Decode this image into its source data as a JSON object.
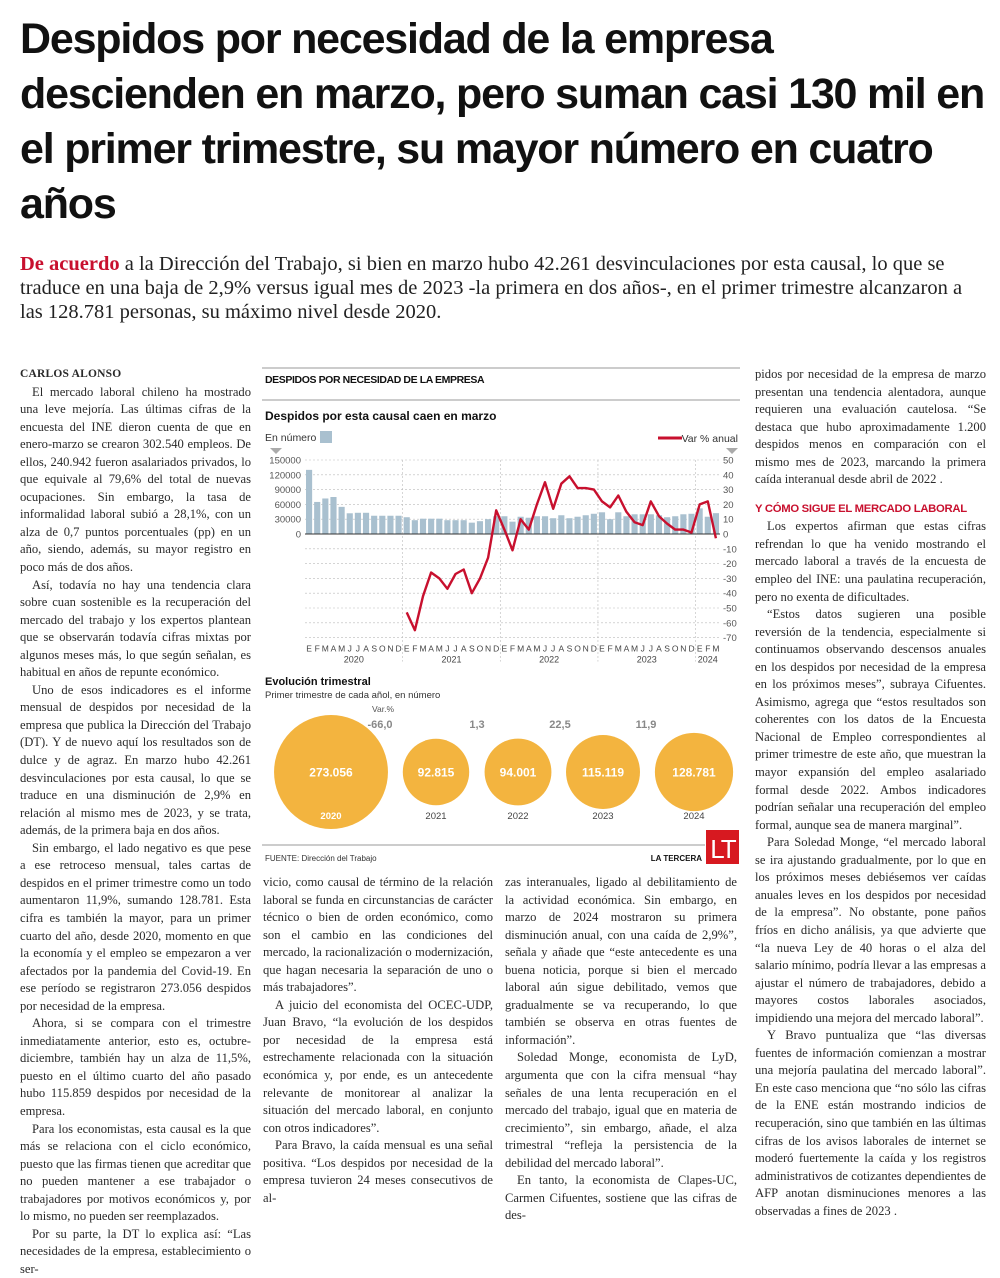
{
  "headline": "Despidos por necesidad de la empresa descienden en marzo, pero suman casi 130 mil en el primer trimestre, su mayor número en cuatro años",
  "lead": {
    "kicker": "De acuerdo",
    "text": " a la Dirección del Trabajo, si bien en marzo hubo 42.261 desvinculaciones por esta causal, lo que se traduce en una baja de 2,9% versus igual mes de 2023 -la primera en dos años-, en el primer trimestre alcanzaron a las 128.781 personas, su máximo nivel desde 2020."
  },
  "byline": "CARLOS ALONSO",
  "columns": {
    "col1": [
      "El mercado laboral chileno ha mostrado una leve mejoría. Las últimas cifras de la encuesta del INE dieron cuenta de que en enero-marzo se crearon 302.540 empleos. De ellos, 240.942 fueron asalariados privados, lo que equivale al 79,6% del total de nuevas ocupaciones. Sin embargo, la tasa de informalidad laboral subió a 28,1%, con un alza de 0,7 puntos porcentuales (pp) en un año, siendo, además, su mayor registro en poco más de dos años.",
      "Así, todavía no hay una tendencia clara sobre cuan sostenible es la recuperación del mercado del trabajo y los expertos plantean que se observarán todavía cifras mixtas por algunos meses más, lo que según señalan, es habitual en años de repunte económico.",
      "Uno de esos indicadores es el informe mensual de despidos por necesidad de la empresa que publica la Dirección del Trabajo (DT). Y de nuevo aquí los resultados son de dulce y de agraz. En marzo hubo 42.261 desvinculaciones por esta causal, lo que se traduce en una disminución de 2,9% en relación al mismo mes de 2023, y se trata, además, de la primera baja en dos años.",
      "Sin embargo, el lado negativo es que pese a ese retroceso mensual, tales cartas de despidos en el primer trimestre como un todo aumentaron 11,9%, sumando 128.781. Esta cifra es también la mayor, para un primer cuarto del año, desde 2020, momento en que la economía y el empleo se empezaron a ver afectados por la pandemia del Covid-19. En ese período se registraron 273.056 despidos por necesidad de la empresa.",
      "Ahora, si se compara con el trimestre inmediatamente anterior, esto es, octubre-diciembre, también hay un alza de 11,5%, puesto en el último cuarto del año pasado hubo 115.859 despidos por necesidad de la empresa.",
      "Para los economistas, esta causal es la que más se relaciona con el ciclo económico, puesto que las firmas tienen que acreditar que no pueden mantener a ese trabajador o trabajadores por motivos económicos y, por lo mismo, no pueden ser reemplazados.",
      "Por su parte, la DT lo explica así: “Las necesidades de la empresa, establecimiento o ser-"
    ],
    "col2": [
      "vicio, como causal de término de la relación laboral se funda en circunstancias de carácter técnico o bien de orden económico, como son el cambio en las condiciones del mercado, la racionalización o modernización, que hagan necesaria la separación de uno o más trabajadores”.",
      "A juicio del economista del OCEC-UDP, Juan Bravo, “la evolución de los despidos por necesidad de la empresa está estrechamente relacionada con la situación económica y, por ende, es un antecedente relevante de monitorear al analizar la situación del mercado laboral, en conjunto con otros indicadores”.",
      "Para Bravo, la caída mensual es una señal positiva. “Los despidos por necesidad de la empresa tuvieron 24 meses consecutivos de al-"
    ],
    "col3": [
      "zas interanuales, ligado al debilitamiento de la actividad económica. Sin embargo, en marzo de 2024 mostraron su primera disminución anual, con una caída de 2,9%”, señala y añade que “este antecedente es una buena noticia, porque si bien el mercado laboral aún sigue debilitado, vemos que gradualmente se va recuperando, lo que también se observa en otras fuentes de información”.",
      "Soledad Monge, economista de LyD, argumenta que con la cifra mensual “hay señales de una lenta recuperación en el mercado del trabajo, igual que en materia de crecimiento”, sin embargo, añade, el alza trimestral “refleja la persistencia de la debilidad del mercado laboral”.",
      "En tanto, la economista de Clapes-UC, Carmen Cifuentes, sostiene que las cifras de des-"
    ],
    "col4a": [
      "pidos por necesidad de la empresa de marzo presentan una tendencia alentadora, aunque requieren una evaluación cautelosa. “Se destaca que hubo aproximadamente 1.200 despidos menos en comparación con el mismo mes de 2023, marcando la primera caída interanual desde abril de 2022 ."
    ],
    "subhead": "Y CÓMO SIGUE EL MERCADO LABORAL",
    "col4b": [
      "Los expertos afirman que estas cifras refrendan lo que ha venido mostrando el mercado laboral a través de la encuesta de empleo del INE: una paulatina recuperación, pero no exenta de dificultades.",
      "“Estos datos sugieren una posible reversión de la tendencia, especialmente si continuamos observando descensos anuales en los despidos por necesidad de la empresa en los próximos meses”, subraya Cifuentes. Asimismo, agrega que “estos resultados son coherentes con los datos de la Encuesta Nacional de Empleo correspondientes al primer trimestre de este año, que muestran la mayor expansión del empleo asalariado formal desde 2022. Ambos indicadores podrían señalar una recuperación del empleo formal, aunque sea de manera marginal”.",
      "Para Soledad Monge, “el mercado laboral se ira ajustando gradualmente, por lo que en los próximos meses debiésemos ver caídas anuales leves en los despidos por necesidad de la empresa”. No obstante, pone paños fríos en dicho análisis, ya que advierte que “la nueva Ley de 40 horas o el alza del salario mínimo, podría llevar a las empresas a ajustar el número de trabajadores, debido a mayores costos laborales asociados, impidiendo una mejora del mercado laboral”.",
      "Y Bravo puntualiza que “las diversas fuentes de información comienzan a mostrar una mejoría paulatina del mercado laboral”. En este caso menciona que “no sólo las cifras de la ENE están mostrando indicios de recuperación, sino que también en las últimas cifras de los avisos laborales de internet se moderó fuertemente la caída y los registros administrativos de cotizantes dependientes de AFP anotan disminuciones menores a las observadas a fines de 2023 ."
    ]
  },
  "graphic": {
    "title": "DESPIDOS POR NECESIDAD DE LA EMPRESA",
    "source": "FUENTE: Dirección del Trabajo",
    "brand": "LA TERCERA",
    "logo": "LT",
    "colors": {
      "bar": "#a9c0cf",
      "line": "#c8102e",
      "bubble": "#f3b43f",
      "logo": "#d71920"
    }
  },
  "chart_data": [
    {
      "type": "bar+line",
      "title": "Despidos por esta causal caen en marzo",
      "left_label": "En número",
      "right_label": "Var % anual",
      "left_ticks": [
        "150000",
        "120000",
        "90000",
        "60000",
        "30000",
        "0"
      ],
      "right_ticks": [
        "50",
        "40",
        "30",
        "20",
        "10",
        "0",
        "-10",
        "-20",
        "-30",
        "-40",
        "-50",
        "-60",
        "-70"
      ],
      "ylim_left": [
        0,
        150000
      ],
      "ylim_right": [
        -70,
        50
      ],
      "month_labels": [
        "E",
        "F",
        "M",
        "A",
        "M",
        "J",
        "J",
        "A",
        "S",
        "O",
        "N",
        "D",
        "E",
        "F",
        "M",
        "A",
        "M",
        "J",
        "J",
        "A",
        "S",
        "O",
        "N",
        "D",
        "E",
        "F",
        "M",
        "A",
        "M",
        "J",
        "J",
        "A",
        "S",
        "O",
        "N",
        "D",
        "E",
        "F",
        "M",
        "A",
        "M",
        "J",
        "J",
        "A",
        "S",
        "O",
        "N",
        "D",
        "E",
        "F",
        "M"
      ],
      "years": [
        "2020",
        "2021",
        "2022",
        "2023",
        "2024"
      ],
      "series": [
        {
          "name": "En número",
          "kind": "bar",
          "values": [
            130000,
            65000,
            72000,
            75000,
            55000,
            42000,
            43000,
            43000,
            37000,
            37000,
            37000,
            37000,
            34000,
            28000,
            31000,
            31000,
            31000,
            28000,
            28000,
            28000,
            23000,
            26000,
            30000,
            36000,
            36000,
            25000,
            35000,
            33000,
            36000,
            36000,
            32000,
            38000,
            32000,
            35000,
            38000,
            41000,
            44000,
            30000,
            44000,
            36000,
            40000,
            40000,
            40000,
            38000,
            34000,
            36000,
            40000,
            41000,
            52000,
            35000,
            42261
          ]
        },
        {
          "name": "Var % anual",
          "kind": "line",
          "values": [
            null,
            null,
            null,
            null,
            null,
            null,
            null,
            null,
            null,
            null,
            null,
            null,
            -53,
            -65,
            -42,
            -26,
            -30,
            -37,
            -27,
            -24,
            -40,
            -30,
            -16,
            16,
            3,
            -11,
            10,
            3,
            20,
            35,
            17,
            34,
            39,
            31,
            31,
            30,
            22,
            18,
            26,
            15,
            8,
            6,
            22,
            12,
            7,
            3,
            3,
            1,
            20,
            22,
            -2.9
          ]
        }
      ]
    },
    {
      "type": "bubble",
      "title": "Evolución trimestral",
      "subtitle": "Primer trimestre de cada añol, en número",
      "var_label": "Var.%",
      "categories": [
        "2020",
        "2021",
        "2022",
        "2023",
        "2024"
      ],
      "values": [
        273056,
        92815,
        94001,
        115119,
        128781
      ],
      "value_labels": [
        "273.056",
        "92.815",
        "94.001",
        "115.119",
        "128.781"
      ],
      "var_pct": [
        "-66,0",
        "1,3",
        "22,5",
        "11,9"
      ]
    }
  ]
}
